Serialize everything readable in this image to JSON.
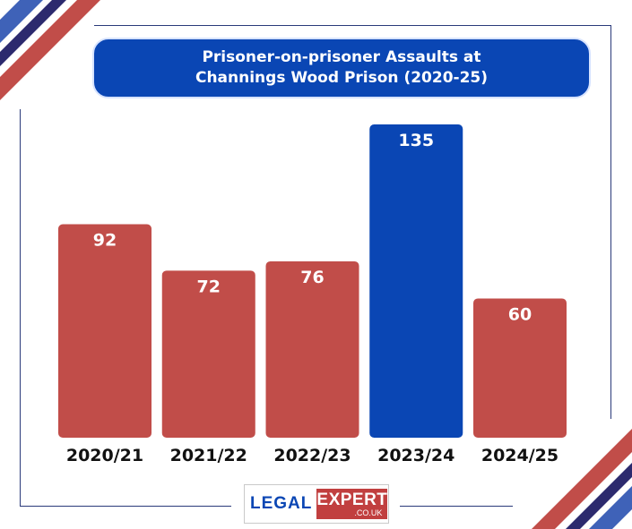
{
  "colors": {
    "bar_default": "#c14d49",
    "bar_highlight": "#0a46b4",
    "title_bg": "#0a46b4",
    "frame": "#2a3a7a",
    "stripe_red": "#c14d49",
    "stripe_navy": "#2c2a6e",
    "stripe_blue": "#3f62b8"
  },
  "chart_data": {
    "type": "bar",
    "title_line1": "Prisoner-on-prisoner Assaults at",
    "title_line2": "Channings Wood Prison (2020-25)",
    "categories": [
      "2020/21",
      "2021/22",
      "2022/23",
      "2023/24",
      "2024/25"
    ],
    "values": [
      92,
      72,
      76,
      135,
      60
    ],
    "highlight_index": 3,
    "ylim": [
      0,
      135
    ],
    "grid": false,
    "xlabel": "",
    "ylabel": ""
  },
  "logo": {
    "legal": "LEGAL",
    "expert": "EXPERT",
    "domain": ".CO.UK"
  }
}
